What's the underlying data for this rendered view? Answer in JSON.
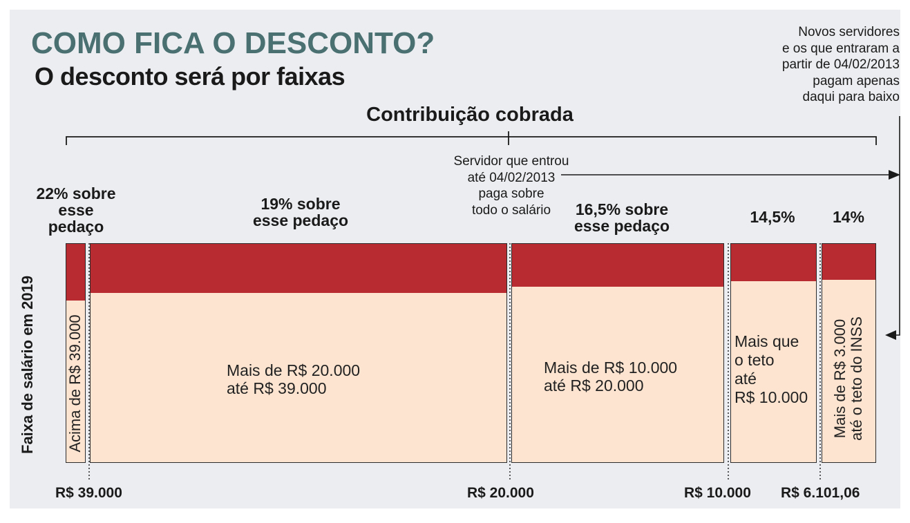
{
  "title": "COMO FICA O DESCONTO?",
  "subtitle": "O desconto será por faixas",
  "contribution_label": "Contribuição cobrada",
  "new_servants_note": "Novos servidores\ne os que entraram a\npartir de 04/02/2013\npagam apenas\ndaqui para baixo",
  "old_servants_note": "Servidor que entrou\naté 04/02/2013\npaga sobre\ntodo o salário",
  "y_axis_label": "Faixa de salário em 2019",
  "bands": [
    {
      "rate_label": "22% sobre\nesse\npedaço",
      "range_label": "Acima de R$ 39.000",
      "rate_pct": 22
    },
    {
      "rate_label": "19% sobre\nesse pedaço",
      "range_label": "Mais de R$ 20.000\naté R$ 39.000",
      "rate_pct": 19
    },
    {
      "rate_label": "16,5% sobre\nesse pedaço",
      "range_label": "Mais de R$ 10.000\naté R$ 20.000",
      "rate_pct": 16.5
    },
    {
      "rate_label": "14,5%",
      "range_label": "Mais que\no teto\naté\nR$ 10.000",
      "rate_pct": 14.5
    },
    {
      "rate_label": "14%",
      "range_label": "Mais de R$ 3.000\naté o teto do INSS",
      "rate_pct": 14
    }
  ],
  "thresholds": [
    "R$ 39.000",
    "R$ 20.000",
    "R$ 10.000",
    "R$ 6.101,06"
  ],
  "colors": {
    "title": "#4a7072",
    "rate_fill": "#b72b31",
    "band_fill": "#fde4d0",
    "background": "#ebedf0"
  }
}
